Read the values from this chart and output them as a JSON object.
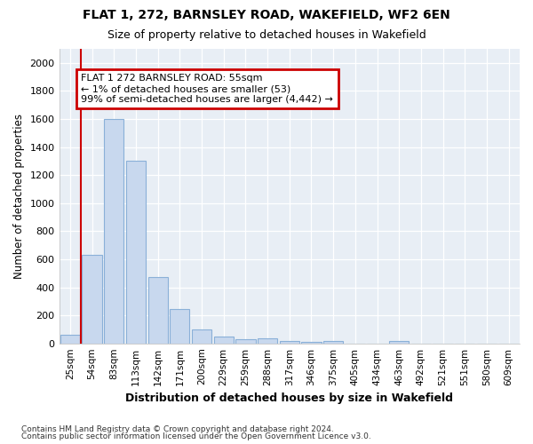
{
  "title1": "FLAT 1, 272, BARNSLEY ROAD, WAKEFIELD, WF2 6EN",
  "title2": "Size of property relative to detached houses in Wakefield",
  "xlabel": "Distribution of detached houses by size in Wakefield",
  "ylabel": "Number of detached properties",
  "categories": [
    "25sqm",
    "54sqm",
    "83sqm",
    "113sqm",
    "142sqm",
    "171sqm",
    "200sqm",
    "229sqm",
    "259sqm",
    "288sqm",
    "317sqm",
    "346sqm",
    "375sqm",
    "405sqm",
    "434sqm",
    "463sqm",
    "492sqm",
    "521sqm",
    "551sqm",
    "580sqm",
    "609sqm"
  ],
  "values": [
    60,
    630,
    1600,
    1300,
    470,
    245,
    100,
    50,
    30,
    35,
    20,
    10,
    20,
    0,
    0,
    20,
    0,
    0,
    0,
    0,
    0
  ],
  "bar_color": "#c8d8ee",
  "bar_edge_color": "#8ab0d8",
  "annotation_text": "FLAT 1 272 BARNSLEY ROAD: 55sqm\n← 1% of detached houses are smaller (53)\n99% of semi-detached houses are larger (4,442) →",
  "ylim": [
    0,
    2100
  ],
  "yticks": [
    0,
    200,
    400,
    600,
    800,
    1000,
    1200,
    1400,
    1600,
    1800,
    2000
  ],
  "footer1": "Contains HM Land Registry data © Crown copyright and database right 2024.",
  "footer2": "Contains public sector information licensed under the Open Government Licence v3.0.",
  "bg_color": "#ffffff",
  "plot_bg_color": "#e8eef5",
  "grid_color": "#ffffff",
  "red_line_color": "#cc0000",
  "annotation_box_color": "#ffffff",
  "annotation_edge_color": "#cc0000"
}
